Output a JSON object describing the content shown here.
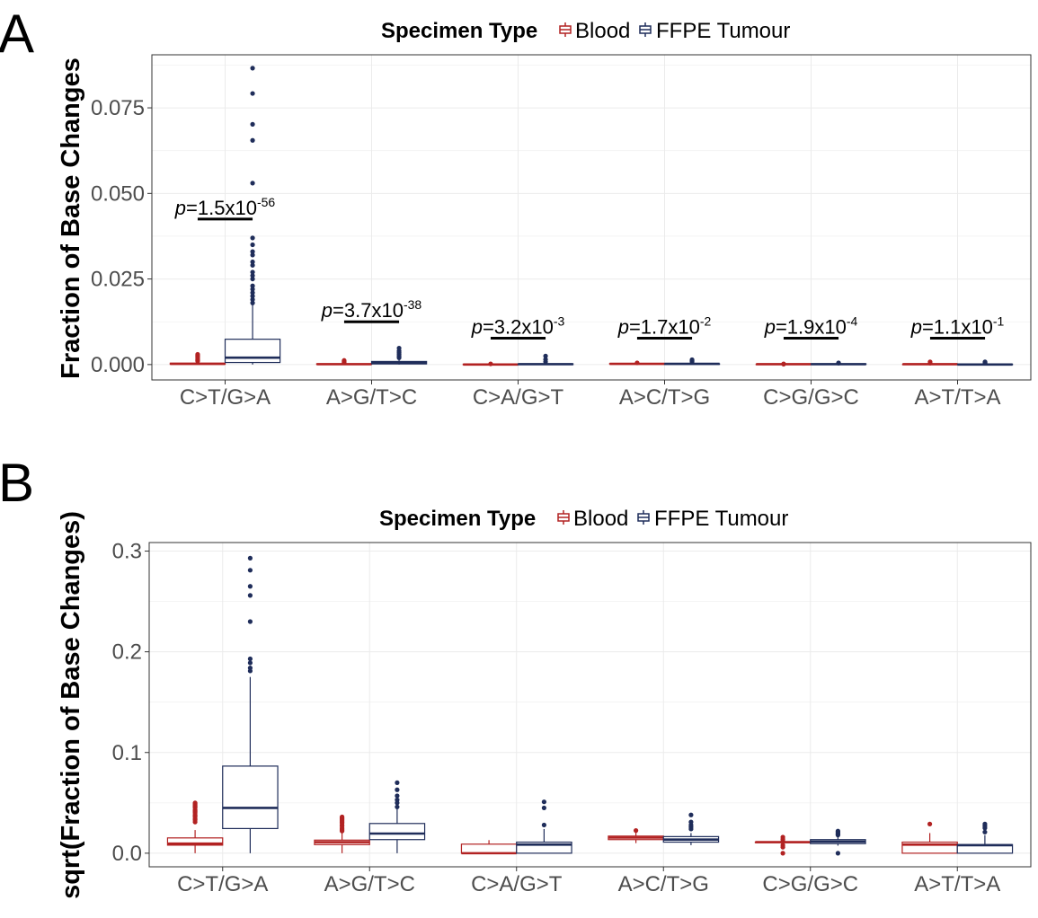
{
  "colors": {
    "blood": "#B22222",
    "ffpe": "#1F2D5A",
    "grid": "#EBEBEB",
    "panel_border": "#333333",
    "axis_text": "#4D4D4D"
  },
  "chart_data": [
    {
      "panel": "A",
      "type": "box",
      "legend": {
        "title": "Specimen Type",
        "entries": [
          "Blood",
          "FFPE Tumour"
        ],
        "position": "top"
      },
      "ylabel": "Fraction of Base Changes",
      "xlabel": "",
      "ylim": [
        -0.0045,
        0.0905
      ],
      "yticks": [
        0.0,
        0.025,
        0.05,
        0.075
      ],
      "ytick_labels": [
        "0.000",
        "0.025",
        "0.050",
        "0.075"
      ],
      "grid": true,
      "categories": [
        "C>T/G>A",
        "A>G/T>C",
        "C>A/G>T",
        "A>C/T>G",
        "C>G/G>C",
        "A>T/T>A"
      ],
      "series": [
        {
          "name": "Blood",
          "boxes": [
            {
              "q1": 0.0001,
              "median": 0.0002,
              "q3": 0.0004,
              "whisker_low": 0.0,
              "whisker_high": 0.0008,
              "outliers": [
                0.001,
                0.0012,
                0.0015,
                0.0018,
                0.0021,
                0.0024,
                0.0027,
                0.003
              ]
            },
            {
              "q1": 0.0001,
              "median": 0.0001,
              "q3": 0.0002,
              "whisker_low": 0.0,
              "whisker_high": 0.0004,
              "outliers": [
                0.0006,
                0.0008,
                0.001,
                0.0012
              ]
            },
            {
              "q1": 0.0,
              "median": 0.0,
              "q3": 0.0001,
              "whisker_low": 0.0,
              "whisker_high": 0.0001,
              "outliers": [
                0.0002
              ]
            },
            {
              "q1": 0.0002,
              "median": 0.0002,
              "q3": 0.0003,
              "whisker_low": 0.0001,
              "whisker_high": 0.0004,
              "outliers": [
                0.0005
              ]
            },
            {
              "q1": 0.0001,
              "median": 0.0001,
              "q3": 0.0001,
              "whisker_low": 0.0,
              "whisker_high": 0.0002,
              "outliers": [
                0.0001,
                0.0002
              ]
            },
            {
              "q1": 0.0,
              "median": 0.0001,
              "q3": 0.0001,
              "whisker_low": 0.0,
              "whisker_high": 0.0002,
              "outliers": [
                0.0004,
                0.0008
              ]
            }
          ]
        },
        {
          "name": "FFPE Tumour",
          "boxes": [
            {
              "q1": 0.0006,
              "median": 0.002,
              "q3": 0.0074,
              "whisker_low": 0.0,
              "whisker_high": 0.0175,
              "outliers": [
                0.018,
                0.019,
                0.02,
                0.021,
                0.022,
                0.023,
                0.025,
                0.026,
                0.027,
                0.029,
                0.03,
                0.032,
                0.033,
                0.035,
                0.037,
                0.053,
                0.0655,
                0.0702,
                0.0792,
                0.0866
              ]
            },
            {
              "q1": 0.0002,
              "median": 0.0004,
              "q3": 0.0009,
              "whisker_low": 0.0,
              "whisker_high": 0.0016,
              "outliers": [
                0.002,
                0.0025,
                0.003,
                0.0035,
                0.004,
                0.0048
              ]
            },
            {
              "q1": 0.0,
              "median": 0.0001,
              "q3": 0.0002,
              "whisker_low": 0.0,
              "whisker_high": 0.0006,
              "outliers": [
                0.0008,
                0.0015,
                0.0025
              ]
            },
            {
              "q1": 0.0001,
              "median": 0.0002,
              "q3": 0.0002,
              "whisker_low": 0.0001,
              "whisker_high": 0.0004,
              "outliers": [
                0.0008,
                0.0011,
                0.0014
              ]
            },
            {
              "q1": 0.0001,
              "median": 0.0001,
              "q3": 0.0002,
              "whisker_low": 0.0,
              "whisker_high": 0.0003,
              "outliers": [
                0.0004,
                0.0005
              ]
            },
            {
              "q1": 0.0,
              "median": 0.0,
              "q3": 0.0001,
              "whisker_low": 0.0,
              "whisker_high": 0.0002,
              "outliers": [
                0.0004,
                0.0006,
                0.0008
              ]
            }
          ]
        }
      ],
      "annotations": [
        {
          "category": "C>T/G>A",
          "p_mantissa": "1.5",
          "p_exponent": "-56",
          "y": 0.0425
        },
        {
          "category": "A>G/T>C",
          "p_mantissa": "3.7",
          "p_exponent": "-38",
          "y": 0.0125
        },
        {
          "category": "C>A/G>T",
          "p_mantissa": "3.2",
          "p_exponent": "-3",
          "y": 0.0077
        },
        {
          "category": "A>C/T>G",
          "p_mantissa": "1.7",
          "p_exponent": "-2",
          "y": 0.0077
        },
        {
          "category": "C>G/G>C",
          "p_mantissa": "1.9",
          "p_exponent": "-4",
          "y": 0.0077
        },
        {
          "category": "A>T/T>A",
          "p_mantissa": "1.1",
          "p_exponent": "-1",
          "y": 0.0077
        }
      ]
    },
    {
      "panel": "B",
      "type": "box",
      "legend": {
        "title": "Specimen Type",
        "entries": [
          "Blood",
          "FFPE Tumour"
        ],
        "position": "top"
      },
      "ylabel": "sqrt(Fraction of Base Changes)",
      "xlabel": "",
      "ylim": [
        -0.0135,
        0.3085
      ],
      "yticks": [
        0.0,
        0.1,
        0.2,
        0.3
      ],
      "ytick_labels": [
        "0.0",
        "0.1",
        "0.2",
        "0.3"
      ],
      "grid": true,
      "categories": [
        "C>T/G>A",
        "A>G/T>C",
        "C>A/G>T",
        "A>C/T>G",
        "C>G/G>C",
        "A>T/T>A"
      ],
      "series": [
        {
          "name": "Blood",
          "boxes": [
            {
              "q1": 0.008,
              "median": 0.0095,
              "q3": 0.0152,
              "whisker_low": 0.0,
              "whisker_high": 0.023,
              "outliers": [
                0.031,
                0.033,
                0.034,
                0.036,
                0.037,
                0.038,
                0.04,
                0.041,
                0.042,
                0.043,
                0.045,
                0.046,
                0.047,
                0.048,
                0.049,
                0.05
              ]
            },
            {
              "q1": 0.0085,
              "median": 0.011,
              "q3": 0.013,
              "whisker_low": 0.0,
              "whisker_high": 0.021,
              "outliers": [
                0.022,
                0.023,
                0.024,
                0.025,
                0.027,
                0.028,
                0.03,
                0.031,
                0.032,
                0.033,
                0.034,
                0.035,
                0.036
              ]
            },
            {
              "q1": 0.0,
              "median": 0.0,
              "q3": 0.009,
              "whisker_low": 0.0,
              "whisker_high": 0.013,
              "outliers": []
            },
            {
              "q1": 0.0135,
              "median": 0.0155,
              "q3": 0.017,
              "whisker_low": 0.01,
              "whisker_high": 0.021,
              "outliers": [
                0.0225
              ]
            },
            {
              "q1": 0.011,
              "median": 0.011,
              "q3": 0.011,
              "whisker_low": 0.011,
              "whisker_high": 0.011,
              "outliers": [
                0.0,
                0.006,
                0.008,
                0.012,
                0.014,
                0.016
              ]
            },
            {
              "q1": 0.0,
              "median": 0.0085,
              "q3": 0.011,
              "whisker_low": 0.0,
              "whisker_high": 0.02,
              "outliers": [
                0.029
              ]
            }
          ]
        },
        {
          "name": "FFPE Tumour",
          "boxes": [
            {
              "q1": 0.0245,
              "median": 0.045,
              "q3": 0.0865,
              "whisker_low": 0.0,
              "whisker_high": 0.175,
              "outliers": [
                0.181,
                0.184,
                0.189,
                0.193,
                0.23,
                0.256,
                0.265,
                0.281,
                0.293
              ]
            },
            {
              "q1": 0.0135,
              "median": 0.0195,
              "q3": 0.0295,
              "whisker_low": 0.0,
              "whisker_high": 0.0445,
              "outliers": [
                0.046,
                0.05,
                0.053,
                0.057,
                0.063,
                0.07
              ]
            },
            {
              "q1": 0.0,
              "median": 0.0085,
              "q3": 0.011,
              "whisker_low": 0.0,
              "whisker_high": 0.024,
              "outliers": [
                0.028,
                0.045,
                0.051
              ]
            },
            {
              "q1": 0.011,
              "median": 0.0135,
              "q3": 0.0165,
              "whisker_low": 0.008,
              "whisker_high": 0.02,
              "outliers": [
                0.024,
                0.026,
                0.028,
                0.031,
                0.038
              ]
            },
            {
              "q1": 0.0095,
              "median": 0.0115,
              "q3": 0.0135,
              "whisker_low": 0.0075,
              "whisker_high": 0.016,
              "outliers": [
                0.0,
                0.018,
                0.019,
                0.02,
                0.021,
                0.022
              ]
            },
            {
              "q1": 0.0,
              "median": 0.008,
              "q3": 0.0085,
              "whisker_low": 0.0,
              "whisker_high": 0.018,
              "outliers": [
                0.021,
                0.025,
                0.027,
                0.029
              ]
            }
          ]
        }
      ],
      "annotations": []
    }
  ]
}
